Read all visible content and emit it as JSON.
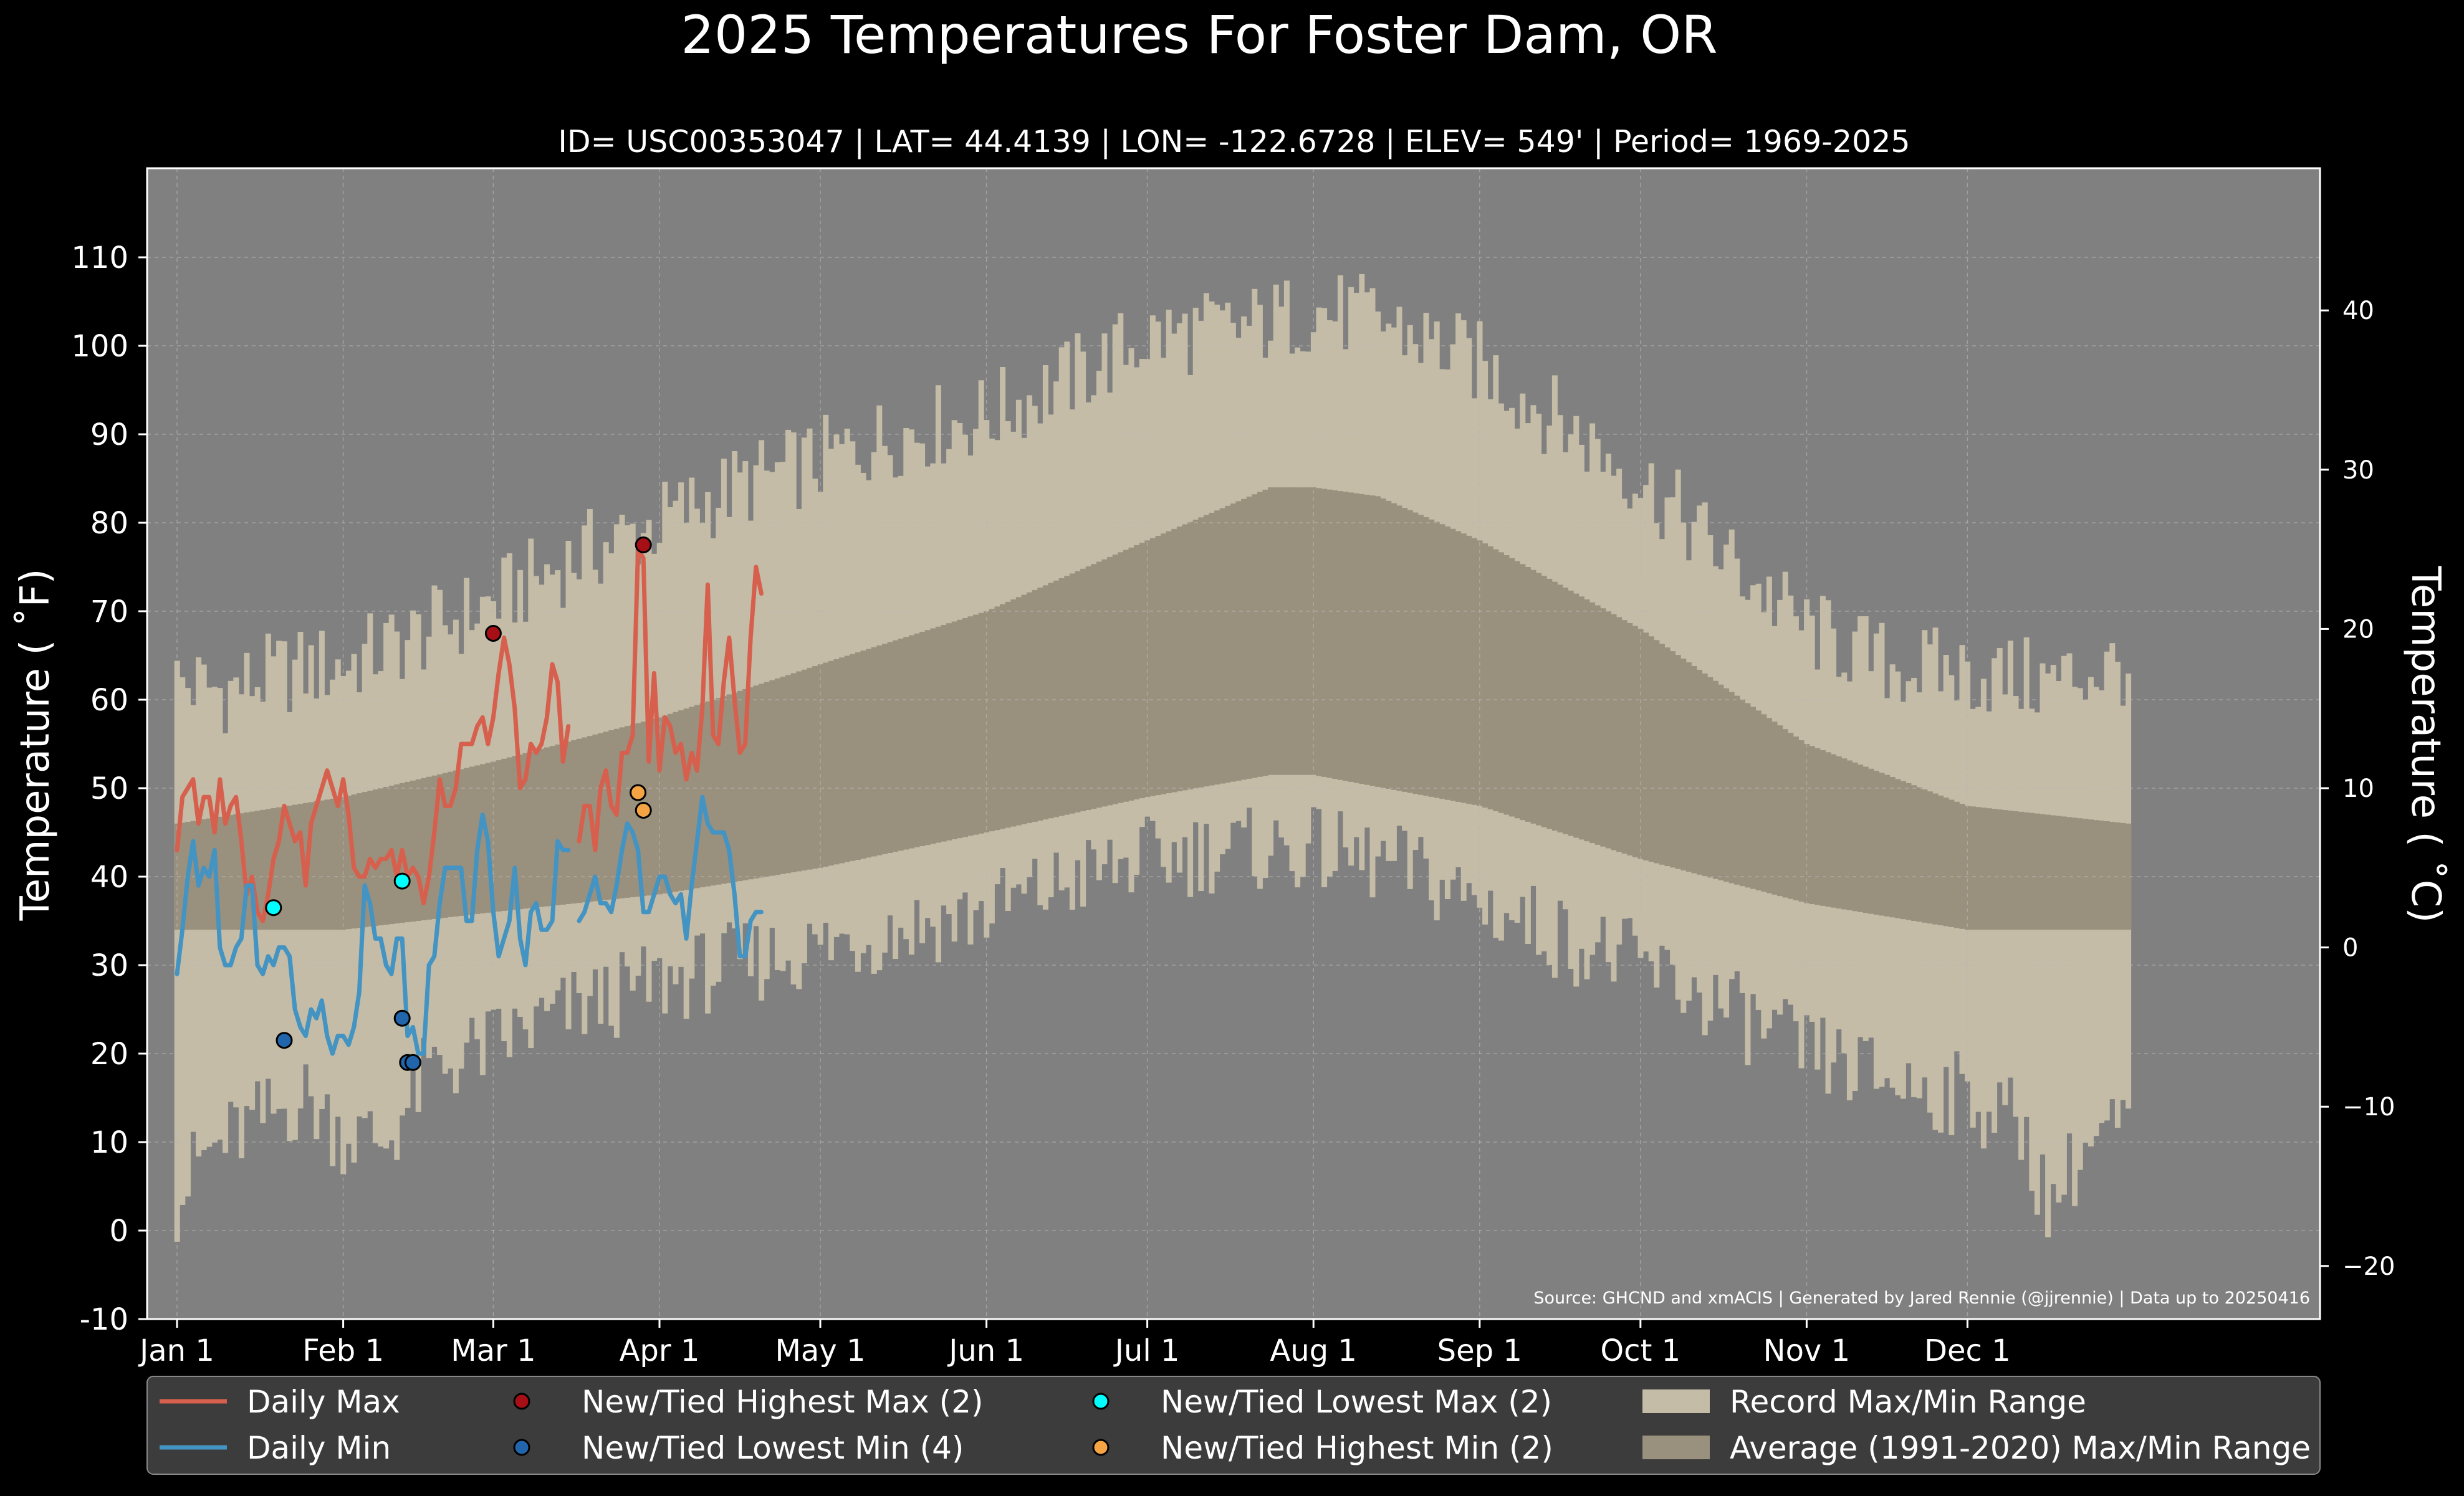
{
  "chart_data": {
    "type": "line",
    "title": "2025 Temperatures For Foster Dam, OR",
    "subtitle": "ID= USC00353047 | LAT= 44.4139 | LON= -122.6728 | ELEV= 549' | Period= 1969-2025",
    "ylabel": "Temperature ( ˚F)",
    "ylabel_right": "Temperature ( ˚C)",
    "source": "Source: GHCND and xmACIS | Generated by Jared Rennie (@jjrennie) | Data up to 20250416",
    "x_range_days": [
      1,
      365
    ],
    "ylim": [
      -10,
      120
    ],
    "y_ticks": [
      "-10",
      "0",
      "10",
      "20",
      "30",
      "40",
      "50",
      "60",
      "70",
      "80",
      "90",
      "100",
      "110"
    ],
    "y_ticks_right": [
      "−20",
      "−10",
      "0",
      "10",
      "20",
      "30",
      "40"
    ],
    "x_ticks": [
      {
        "day": 1,
        "label": "Jan 1"
      },
      {
        "day": 32,
        "label": "Feb 1"
      },
      {
        "day": 60,
        "label": "Mar 1"
      },
      {
        "day": 91,
        "label": "Apr 1"
      },
      {
        "day": 121,
        "label": "May 1"
      },
      {
        "day": 152,
        "label": "Jun 1"
      },
      {
        "day": 182,
        "label": "Jul 1"
      },
      {
        "day": 213,
        "label": "Aug 1"
      },
      {
        "day": 244,
        "label": "Sep 1"
      },
      {
        "day": 274,
        "label": "Oct 1"
      },
      {
        "day": 305,
        "label": "Nov 1"
      },
      {
        "day": 335,
        "label": "Dec 1"
      }
    ],
    "record_max_anchors": [
      [
        1,
        62
      ],
      [
        10,
        61
      ],
      [
        20,
        63
      ],
      [
        32,
        64
      ],
      [
        45,
        67
      ],
      [
        60,
        71
      ],
      [
        75,
        76
      ],
      [
        91,
        80
      ],
      [
        105,
        84
      ],
      [
        121,
        87
      ],
      [
        135,
        90
      ],
      [
        152,
        92
      ],
      [
        170,
        97
      ],
      [
        182,
        101
      ],
      [
        200,
        102
      ],
      [
        213,
        104
      ],
      [
        225,
        103
      ],
      [
        244,
        98
      ],
      [
        260,
        91
      ],
      [
        274,
        85
      ],
      [
        290,
        76
      ],
      [
        305,
        68
      ],
      [
        320,
        64
      ],
      [
        335,
        63
      ],
      [
        350,
        62
      ],
      [
        365,
        64
      ]
    ],
    "record_min_anchors": [
      [
        1,
        3
      ],
      [
        5,
        8
      ],
      [
        15,
        12
      ],
      [
        25,
        15
      ],
      [
        32,
        11
      ],
      [
        40,
        10
      ],
      [
        48,
        18
      ],
      [
        60,
        21
      ],
      [
        75,
        25
      ],
      [
        91,
        28
      ],
      [
        105,
        30
      ],
      [
        121,
        32
      ],
      [
        135,
        34
      ],
      [
        152,
        36
      ],
      [
        170,
        40
      ],
      [
        182,
        42
      ],
      [
        195,
        43
      ],
      [
        213,
        43
      ],
      [
        230,
        41
      ],
      [
        244,
        37
      ],
      [
        260,
        33
      ],
      [
        274,
        30
      ],
      [
        290,
        25
      ],
      [
        305,
        20
      ],
      [
        320,
        17
      ],
      [
        335,
        15
      ],
      [
        345,
        12
      ],
      [
        350,
        3
      ],
      [
        358,
        10
      ],
      [
        365,
        12
      ]
    ],
    "average_max_anchors": [
      [
        1,
        46
      ],
      [
        32,
        49
      ],
      [
        60,
        53
      ],
      [
        91,
        58
      ],
      [
        121,
        64
      ],
      [
        152,
        70
      ],
      [
        182,
        78
      ],
      [
        205,
        84
      ],
      [
        213,
        84
      ],
      [
        225,
        83
      ],
      [
        244,
        78
      ],
      [
        274,
        68
      ],
      [
        305,
        55
      ],
      [
        335,
        48
      ],
      [
        365,
        46
      ]
    ],
    "average_min_anchors": [
      [
        1,
        34
      ],
      [
        32,
        34
      ],
      [
        60,
        36
      ],
      [
        91,
        38
      ],
      [
        121,
        41
      ],
      [
        152,
        45
      ],
      [
        182,
        49
      ],
      [
        205,
        51.5
      ],
      [
        213,
        51.5
      ],
      [
        244,
        48
      ],
      [
        274,
        42
      ],
      [
        305,
        37
      ],
      [
        335,
        34
      ],
      [
        365,
        34
      ]
    ],
    "series": [
      {
        "name": "Daily Max",
        "color": "#d6604d",
        "segments": [
          {
            "start_day": 1,
            "values": [
              43,
              49,
              50,
              51,
              46,
              49,
              49,
              45,
              51,
              46,
              48,
              49,
              44,
              38,
              40,
              36,
              35,
              38,
              42,
              44,
              48,
              46,
              44,
              45,
              39,
              46,
              48,
              50,
              52,
              50,
              48,
              51,
              47,
              41,
              40,
              40,
              42,
              41,
              42,
              42,
              43,
              40,
              43,
              40,
              41,
              40,
              37,
              40,
              45,
              51,
              48,
              48,
              50,
              55,
              55,
              55,
              57,
              58,
              55,
              58,
              63,
              67,
              64,
              59,
              50,
              51,
              55,
              54,
              55,
              58,
              64,
              62,
              53,
              57
            ]
          },
          {
            "start_day": 76,
            "values": [
              44,
              48,
              48,
              43,
              50,
              52,
              48,
              47,
              54,
              54,
              56,
              77,
              76,
              53,
              63,
              52,
              58,
              57,
              54,
              55,
              51,
              54,
              52,
              59,
              73,
              56,
              55,
              62,
              67,
              60,
              54,
              55,
              67,
              75,
              72
            ]
          }
        ]
      },
      {
        "name": "Daily Min",
        "color": "#4393c3",
        "segments": [
          {
            "start_day": 1,
            "values": [
              29,
              34,
              40,
              44,
              39,
              41,
              40,
              43,
              32,
              30,
              30,
              32,
              33,
              39,
              39,
              30,
              29,
              31,
              30,
              32,
              32,
              31,
              25,
              23,
              22,
              25,
              24,
              26,
              22,
              20,
              22,
              22,
              21,
              23,
              27,
              39,
              37,
              33,
              33,
              30,
              29,
              33,
              33,
              22,
              23,
              20,
              20,
              30,
              31,
              37,
              41,
              41,
              41,
              41,
              35,
              35,
              43,
              47,
              44,
              36,
              31,
              33,
              35,
              41,
              33,
              30,
              36,
              37,
              34,
              34,
              35,
              44,
              43,
              43
            ]
          },
          {
            "start_day": 76,
            "values": [
              35,
              36,
              38,
              40,
              37,
              37,
              36,
              39,
              43,
              46,
              45,
              43,
              36,
              36,
              38,
              40,
              40,
              38,
              37,
              38,
              33,
              39,
              44,
              49,
              46,
              45,
              45,
              45,
              43,
              38,
              31,
              31,
              35,
              36,
              36
            ]
          }
        ]
      }
    ],
    "markers": [
      {
        "name": "New/Tied Highest Max (2)",
        "color": "#a50f15",
        "points": [
          [
            60,
            67.5
          ],
          [
            88,
            77.5
          ]
        ]
      },
      {
        "name": "New/Tied Lowest Min (4)",
        "color": "#2166ac",
        "points": [
          [
            21,
            21.5
          ],
          [
            43,
            24
          ],
          [
            44,
            19
          ],
          [
            45,
            19
          ]
        ]
      },
      {
        "name": "New/Tied Lowest Max (2)",
        "color": "#00ffff",
        "points": [
          [
            19,
            36.5
          ],
          [
            43,
            39.5
          ]
        ]
      },
      {
        "name": "New/Tied Highest Min (2)",
        "color": "#f4a442",
        "points": [
          [
            87,
            49.5
          ],
          [
            88,
            47.5
          ]
        ]
      }
    ],
    "legend_position": "bottom",
    "legend": [
      {
        "label": "Daily Max",
        "kind": "line",
        "color": "#d6604d"
      },
      {
        "label": "Daily Min",
        "kind": "line",
        "color": "#4393c3"
      },
      {
        "label": "New/Tied Highest Max (2)",
        "kind": "dot",
        "color": "#a50f15"
      },
      {
        "label": "New/Tied Lowest Min (4)",
        "kind": "dot",
        "color": "#2166ac"
      },
      {
        "label": "New/Tied Lowest Max (2)",
        "kind": "dot",
        "color": "#00ffff"
      },
      {
        "label": "New/Tied Highest Min (2)",
        "kind": "dot",
        "color": "#f4a442"
      },
      {
        "label": "Record Max/Min Range",
        "kind": "patch",
        "color": "#c4bca6"
      },
      {
        "label": "Average (1991-2020) Max/Min Range",
        "kind": "patch",
        "color": "#9a907e"
      }
    ],
    "colors": {
      "background": "#000000",
      "plot_background": "#808080",
      "record_range": "#c4bca6",
      "average_range": "#9a907e",
      "grid": "#b8b8b8",
      "legend_background": "#3c3c3c"
    },
    "grid": true
  }
}
